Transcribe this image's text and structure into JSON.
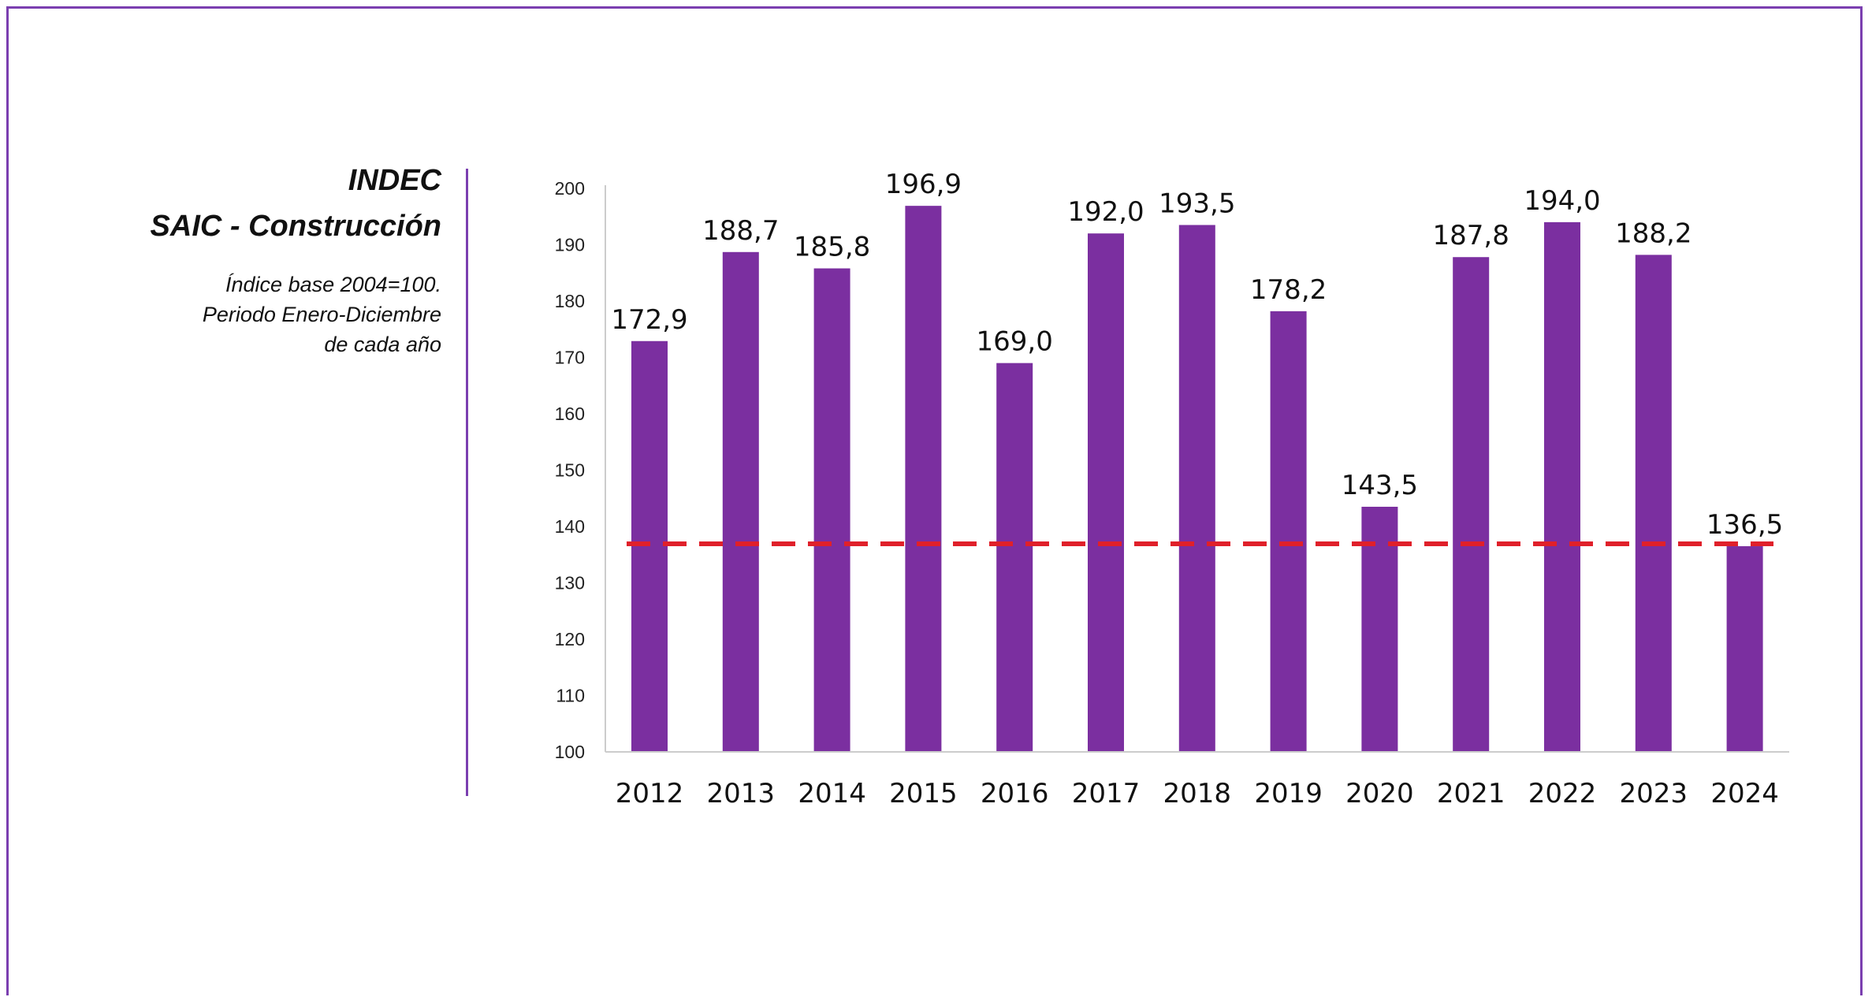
{
  "header": {
    "title_line1": "INDEC",
    "title_line2": "SAIC - Construcción",
    "subtitle_line1": "Índice base 2004=100.",
    "subtitle_line2": "Periodo Enero-Diciembre",
    "subtitle_line3": "de cada año"
  },
  "colors": {
    "bar": "#7b2fa0",
    "reference_line": "#e0202a",
    "frame": "#7b3fb0",
    "axis": "#cccccc"
  },
  "chart_data": {
    "type": "bar",
    "categories": [
      "2012",
      "2013",
      "2014",
      "2015",
      "2016",
      "2017",
      "2018",
      "2019",
      "2020",
      "2021",
      "2022",
      "2023",
      "2024"
    ],
    "values": [
      172.9,
      188.7,
      185.8,
      196.9,
      169.0,
      192.0,
      193.5,
      178.2,
      143.5,
      187.8,
      194.0,
      188.2,
      136.5
    ],
    "value_labels": [
      "172,9",
      "188,7",
      "185,8",
      "196,9",
      "169,0",
      "192,0",
      "193,5",
      "178,2",
      "143,5",
      "187,8",
      "194,0",
      "188,2",
      "136,5"
    ],
    "yticks": [
      "100",
      "110",
      "120",
      "130",
      "140",
      "150",
      "160",
      "170",
      "180",
      "190",
      "200"
    ],
    "ylim": [
      100,
      200
    ],
    "reference_line": {
      "value": 136.5,
      "style": "dashed"
    },
    "grid": false,
    "legend": "none",
    "title": "",
    "xlabel": "",
    "ylabel": ""
  }
}
